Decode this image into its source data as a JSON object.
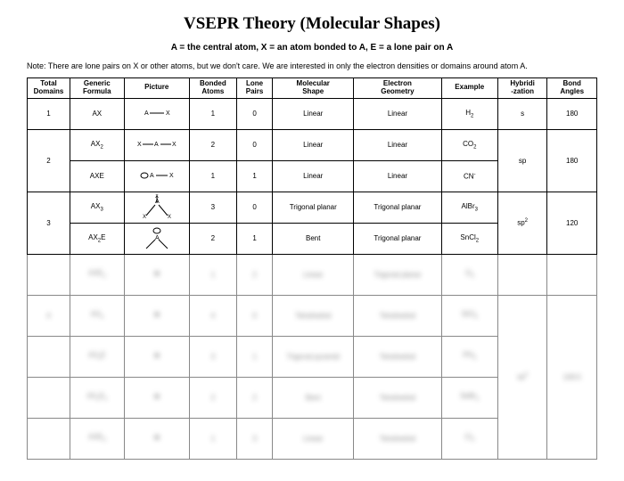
{
  "title": "VSEPR Theory (Molecular Shapes)",
  "legend": "A = the central atom, X = an atom bonded to A, E = a lone pair on A",
  "note": "Note:  There are lone pairs on X or other atoms, but we don't care.  We are interested in only the electron densities or domains around atom A.",
  "columns": {
    "total": "Total",
    "total2": "Domains",
    "formula": "Generic",
    "formula2": "Formula",
    "picture": "Picture",
    "bonded": "Bonded",
    "bonded2": "Atoms",
    "lone": "Lone",
    "lone2": "Pairs",
    "shape": "Molecular",
    "shape2": "Shape",
    "geom": "Electron",
    "geom2": "Geometry",
    "example": "Example",
    "hyb": "Hybridi",
    "hyb2": "-zation",
    "angle": "Bond",
    "angle2": "Angles"
  },
  "rows": [
    {
      "total": "1",
      "formula": "AX",
      "pic": "ax",
      "bonded": "1",
      "lone": "0",
      "shape": "Linear",
      "geom": "Linear",
      "example": "H₂",
      "hyb": "s",
      "angle": "180"
    },
    {
      "total": "2",
      "formula": "AX₂",
      "pic": "ax2",
      "bonded": "2",
      "lone": "0",
      "shape": "Linear",
      "geom": "Linear",
      "example": "CO₂",
      "hyb": "sp",
      "angle": "180",
      "hyb_rowspan": 2,
      "angle_rowspan": 2,
      "total_rowspan": 2
    },
    {
      "formula": "AXE",
      "pic": "axe",
      "bonded": "1",
      "lone": "1",
      "shape": "Linear",
      "geom": "Linear",
      "example": "CN⁻"
    },
    {
      "total": "3",
      "formula": "AX₃",
      "pic": "ax3",
      "bonded": "3",
      "lone": "0",
      "shape": "Trigonal planar",
      "geom": "Trigonal planar",
      "example": "AlBr₃",
      "hyb": "sp²",
      "angle": "120",
      "hyb_rowspan": 2,
      "angle_rowspan": 2,
      "total_rowspan": 2
    },
    {
      "formula": "AX₂E",
      "pic": "ax2e",
      "bonded": "2",
      "lone": "1",
      "shape": "Bent",
      "geom": "Trigonal planar",
      "example": "SnCl₂"
    }
  ],
  "blur_rows": [
    {
      "total": "",
      "formula": "AXE₂",
      "bonded": "1",
      "lone": "2",
      "shape": "Linear",
      "geom": "Trigonal planar",
      "example": "O₃"
    },
    {
      "total": "4",
      "formula": "AX₄",
      "bonded": "4",
      "lone": "0",
      "shape": "Tetrahedral",
      "geom": "Tetrahedral",
      "example": "SiCl₄",
      "hyb": "sp³",
      "angle": "109.5"
    },
    {
      "total": "",
      "formula": "AX₃E",
      "bonded": "3",
      "lone": "1",
      "shape": "Trigonal pyramid",
      "geom": "Tetrahedral",
      "example": "PH₃"
    },
    {
      "total": "",
      "formula": "AX₂E₂",
      "bonded": "2",
      "lone": "2",
      "shape": "Bent",
      "geom": "Tetrahedral",
      "example": "SeBr₂"
    },
    {
      "total": "",
      "formula": "AXE₃",
      "bonded": "1",
      "lone": "3",
      "shape": "Linear",
      "geom": "Tetrahedral",
      "example": "Cl₂"
    }
  ],
  "style": {
    "background_color": "#ffffff",
    "text_color": "#000000",
    "border_color": "#000000",
    "title_fontsize": 19,
    "body_fontsize": 8,
    "legend_fontsize": 10,
    "note_fontsize": 9
  }
}
